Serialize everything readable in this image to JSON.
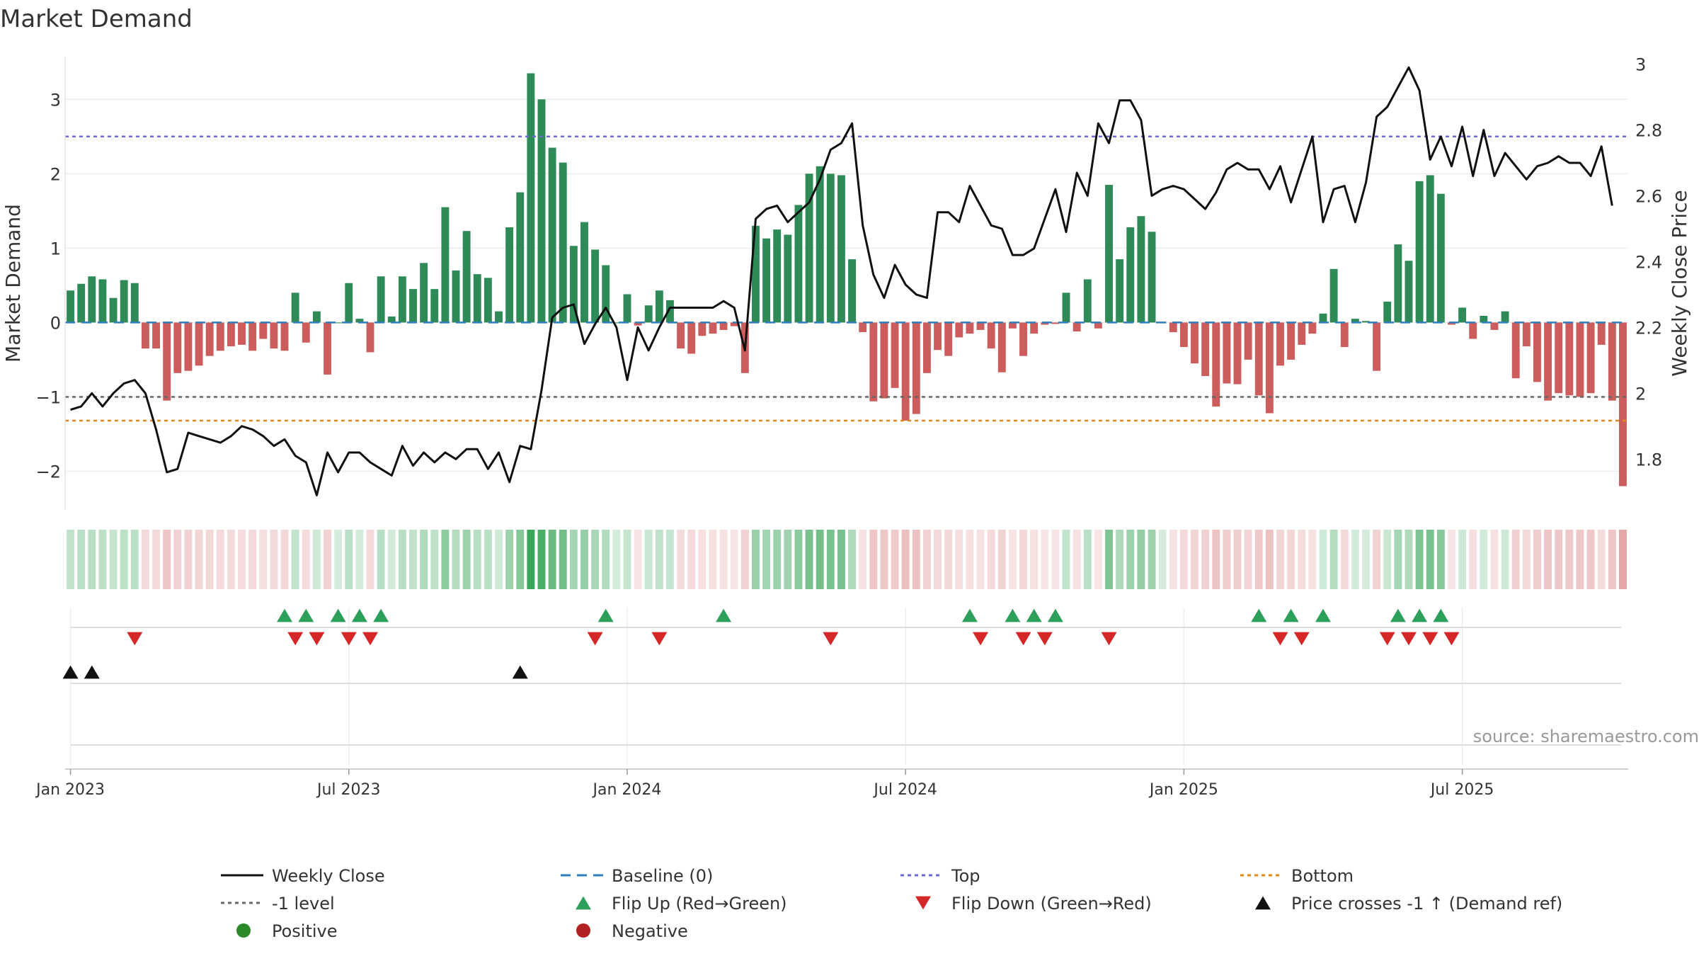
{
  "chart_data": {
    "type": "bar",
    "title": "Market Demand",
    "ylabel_left": "Market Demand",
    "ylabel_right": "Weekly Close Price",
    "source": "source: sharemaestro.com",
    "ylim_left": [
      -2.5,
      3.65
    ],
    "ylim_right": [
      1.65,
      3.04
    ],
    "left_ticks": [
      {
        "v": 3,
        "label": "3"
      },
      {
        "v": 2,
        "label": "2"
      },
      {
        "v": 1,
        "label": "1"
      },
      {
        "v": 0,
        "label": "0"
      },
      {
        "v": -1,
        "label": "−1"
      },
      {
        "v": -2,
        "label": "−2"
      }
    ],
    "right_ticks": [
      {
        "v": 3.0,
        "label": "3"
      },
      {
        "v": 2.8,
        "label": "2.8"
      },
      {
        "v": 2.6,
        "label": "2.6"
      },
      {
        "v": 2.4,
        "label": "2.4"
      },
      {
        "v": 2.2,
        "label": "2.2"
      },
      {
        "v": 2.0,
        "label": "2"
      },
      {
        "v": 1.8,
        "label": "1.8"
      }
    ],
    "x_ticks": [
      {
        "week": 1,
        "label": "Jan 2023"
      },
      {
        "week": 27,
        "label": "Jul 2023"
      },
      {
        "week": 53,
        "label": "Jan 2024"
      },
      {
        "week": 79,
        "label": "Jul 2024"
      },
      {
        "week": 105,
        "label": "Jan 2025"
      },
      {
        "week": 131,
        "label": "Jul 2025"
      }
    ],
    "reference_lines": {
      "top": 2.5,
      "bottom": -1.32,
      "minus_one": -1.0,
      "baseline": 0
    },
    "demand": [
      0.43,
      0.52,
      0.62,
      0.58,
      0.33,
      0.57,
      0.53,
      -0.35,
      -0.35,
      -1.05,
      -0.68,
      -0.65,
      -0.58,
      -0.45,
      -0.38,
      -0.32,
      -0.3,
      -0.38,
      -0.22,
      -0.35,
      -0.38,
      0.4,
      -0.27,
      0.15,
      -0.7,
      0.0,
      0.53,
      0.05,
      -0.4,
      0.62,
      0.08,
      0.62,
      0.45,
      0.8,
      0.45,
      1.55,
      0.7,
      1.23,
      0.65,
      0.6,
      0.15,
      1.28,
      1.75,
      3.35,
      3.0,
      2.35,
      2.15,
      1.03,
      1.35,
      0.98,
      0.77,
      0.0,
      0.38,
      -0.04,
      0.23,
      0.43,
      0.3,
      -0.35,
      -0.42,
      -0.18,
      -0.15,
      -0.1,
      -0.05,
      -0.68,
      1.3,
      1.13,
      1.25,
      1.18,
      1.58,
      2.0,
      2.1,
      2.0,
      1.98,
      0.85,
      -0.13,
      -1.06,
      -1.02,
      -0.88,
      -1.32,
      -1.23,
      -0.68,
      -0.37,
      -0.45,
      -0.2,
      -0.15,
      -0.1,
      -0.35,
      -0.67,
      -0.08,
      -0.45,
      -0.15,
      -0.03,
      -0.02,
      0.4,
      -0.12,
      0.58,
      -0.08,
      1.85,
      0.85,
      1.28,
      1.43,
      1.22,
      0.0,
      -0.13,
      -0.33,
      -0.55,
      -0.72,
      -1.13,
      -0.82,
      -0.83,
      -0.5,
      -0.98,
      -1.22,
      -0.58,
      -0.5,
      -0.3,
      -0.15,
      0.12,
      0.72,
      -0.33,
      0.05,
      0.02,
      -0.65,
      0.28,
      1.05,
      0.83,
      1.9,
      1.98,
      1.73,
      -0.03,
      0.2,
      -0.22,
      0.09,
      -0.1,
      0.15,
      -0.75,
      -0.32,
      -0.8,
      -1.05,
      -0.95,
      -0.98,
      -1.0,
      -0.95,
      -0.3,
      -1.05,
      -2.2
    ],
    "weekly_close": [
      1.95,
      1.96,
      2.0,
      1.96,
      2.0,
      2.03,
      2.04,
      2.0,
      1.89,
      1.76,
      1.77,
      1.88,
      1.87,
      1.86,
      1.85,
      1.87,
      1.9,
      1.89,
      1.87,
      1.84,
      1.86,
      1.81,
      1.79,
      1.69,
      1.82,
      1.76,
      1.82,
      1.82,
      1.79,
      1.77,
      1.75,
      1.84,
      1.78,
      1.82,
      1.79,
      1.82,
      1.8,
      1.83,
      1.83,
      1.77,
      1.82,
      1.73,
      1.84,
      1.83,
      2.01,
      2.23,
      2.26,
      2.27,
      2.15,
      2.21,
      2.26,
      2.2,
      2.04,
      2.2,
      2.13,
      2.2,
      2.26,
      2.26,
      2.26,
      2.26,
      2.26,
      2.28,
      2.26,
      2.13,
      2.53,
      2.56,
      2.57,
      2.52,
      2.55,
      2.58,
      2.65,
      2.74,
      2.76,
      2.82,
      2.51,
      2.36,
      2.29,
      2.39,
      2.33,
      2.3,
      2.29,
      2.55,
      2.55,
      2.52,
      2.63,
      2.57,
      2.51,
      2.5,
      2.42,
      2.42,
      2.44,
      2.53,
      2.62,
      2.49,
      2.67,
      2.6,
      2.82,
      2.76,
      2.89,
      2.89,
      2.83,
      2.6,
      2.62,
      2.63,
      2.62,
      2.59,
      2.56,
      2.61,
      2.68,
      2.7,
      2.68,
      2.68,
      2.62,
      2.69,
      2.58,
      2.68,
      2.78,
      2.52,
      2.62,
      2.63,
      2.52,
      2.64,
      2.84,
      2.87,
      2.93,
      2.99,
      2.92,
      2.71,
      2.78,
      2.69,
      2.81,
      2.66,
      2.8,
      2.66,
      2.73,
      2.69,
      2.65,
      2.69,
      2.7,
      2.72,
      2.7,
      2.7,
      2.66,
      2.75,
      2.57
    ],
    "flip_up_weeks": [
      21,
      23,
      26,
      28,
      30,
      51,
      62,
      85,
      89,
      91,
      93,
      112,
      115,
      118,
      125,
      127,
      129
    ],
    "flip_down_weeks": [
      7,
      22,
      24,
      27,
      29,
      50,
      56,
      72,
      86,
      90,
      92,
      98,
      114,
      116,
      124,
      126,
      128,
      130
    ],
    "price_cross_weeks": [
      1,
      3,
      43
    ],
    "legend": [
      {
        "key": "close",
        "label": "Weekly Close",
        "symbol": "line-solid",
        "color": "#111111"
      },
      {
        "key": "baseline",
        "label": "Baseline (0)",
        "symbol": "line-dash",
        "color": "#2f7fbf"
      },
      {
        "key": "top",
        "label": "Top",
        "symbol": "line-dot",
        "color": "#6a6ad0"
      },
      {
        "key": "bottom",
        "label": "Bottom",
        "symbol": "line-dot",
        "color": "#e08a1e"
      },
      {
        "key": "minus1",
        "label": "-1 level",
        "symbol": "line-dot",
        "color": "#666666"
      },
      {
        "key": "flipup",
        "label": "Flip Up (Red→Green)",
        "symbol": "tri-up",
        "color": "#2ca05a"
      },
      {
        "key": "flipdown",
        "label": "Flip Down (Green→Red)",
        "symbol": "tri-down",
        "color": "#d62728"
      },
      {
        "key": "cross",
        "label": "Price crosses -1 ↑ (Demand ref)",
        "symbol": "tri-up",
        "color": "#111111"
      },
      {
        "key": "positive",
        "label": "Positive",
        "symbol": "dot",
        "color": "#2a8a2a"
      },
      {
        "key": "negative",
        "label": "Negative",
        "symbol": "dot",
        "color": "#b22222"
      }
    ],
    "colors": {
      "positive": "#2e8b57",
      "negative": "#cd5c5c",
      "close": "#111111",
      "top": "#6a6ad0",
      "bottom": "#e08a1e",
      "minus_one": "#666666",
      "baseline": "#2f7fbf",
      "flip_up": "#2ca05a",
      "flip_down": "#d62728"
    }
  }
}
